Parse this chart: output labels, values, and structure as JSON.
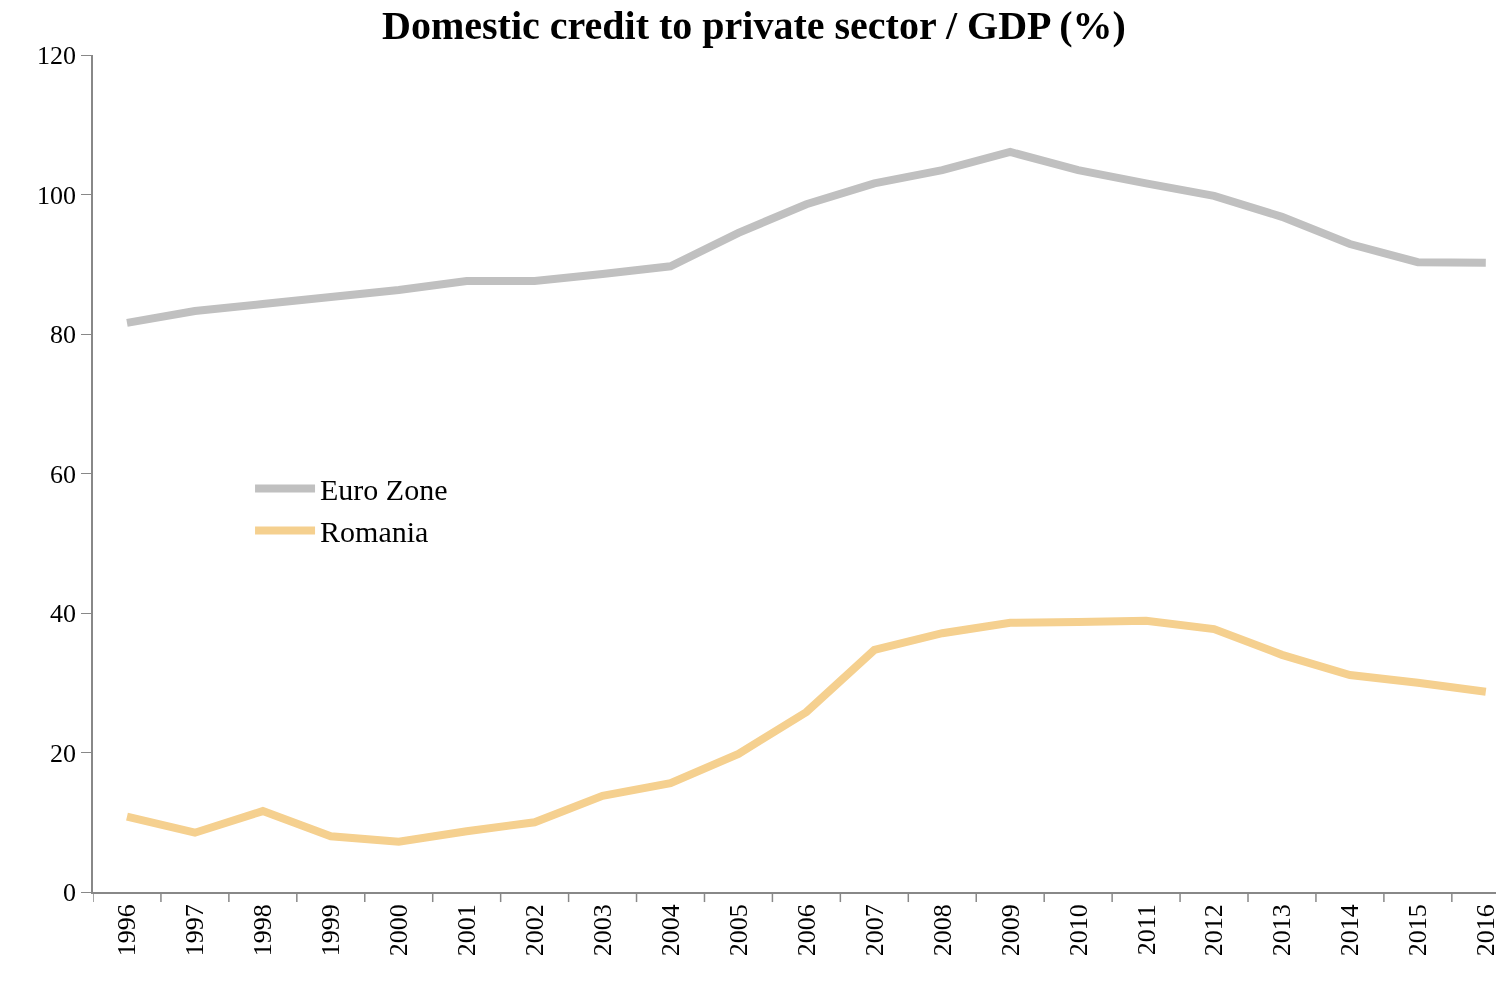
{
  "chart_data": {
    "type": "line",
    "title": "Domestic credit to private sector / GDP (%)",
    "categories": [
      "1996",
      "1997",
      "1998",
      "1999",
      "2000",
      "2001",
      "2002",
      "2003",
      "2004",
      "2005",
      "2006",
      "2007",
      "2008",
      "2009",
      "2010",
      "2011",
      "2012",
      "2013",
      "2014",
      "2015",
      "2016"
    ],
    "series": [
      {
        "name": "Euro Zone",
        "color": "#c0c0c0",
        "values": [
          81.6,
          83.3,
          84.3,
          85.3,
          86.3,
          87.6,
          87.6,
          88.6,
          89.7,
          94.5,
          98.6,
          101.6,
          103.5,
          106.1,
          103.5,
          101.6,
          99.8,
          96.8,
          92.9,
          90.3,
          90.2
        ]
      },
      {
        "name": "Romania",
        "color": "#f5d08f",
        "values": [
          10.8,
          8.5,
          11.6,
          8.0,
          7.2,
          8.7,
          10.0,
          13.8,
          15.6,
          19.8,
          25.8,
          34.7,
          37.1,
          38.6,
          38.7,
          38.9,
          37.7,
          34.0,
          31.1,
          30.0,
          28.7
        ]
      }
    ],
    "ylim": [
      0,
      120
    ],
    "yticks": [
      0,
      20,
      40,
      60,
      80,
      100,
      120
    ],
    "legend": "center",
    "marker": "none",
    "line_style": "solid"
  }
}
